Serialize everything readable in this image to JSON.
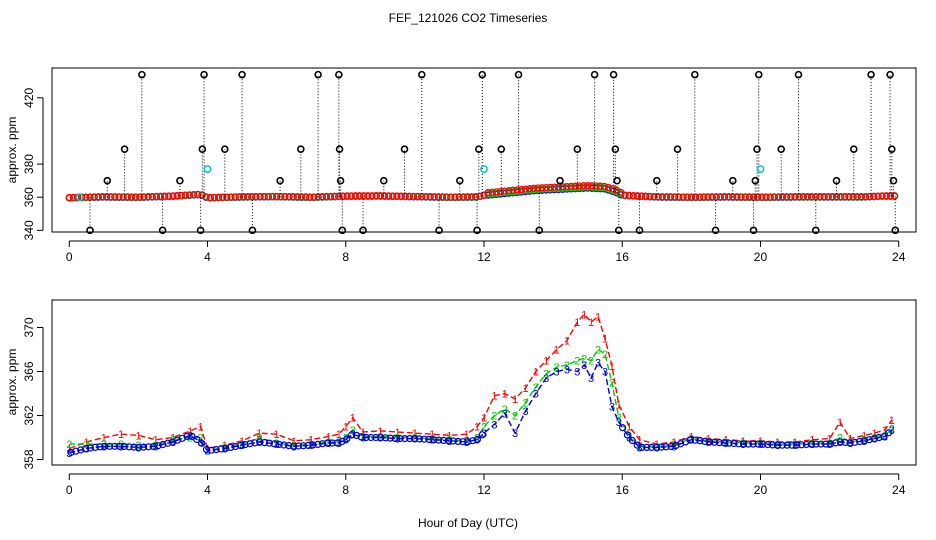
{
  "title": "FEF_121026  CO2 Timeseries",
  "xlabel": "Hour of Day (UTC)",
  "colors": {
    "axis": "#000000",
    "s1": "#ff0000",
    "s2": "#00cc00",
    "s3": "#0000cc",
    "black": "#000000",
    "cyan": "#00cccc"
  },
  "chart_data": [
    {
      "type": "scatter",
      "title": "FEF_121026  CO2 Timeseries",
      "xlabel": "",
      "ylabel": "approx. ppm",
      "xlim": [
        -0.5,
        24.5
      ],
      "ylim": [
        339,
        438
      ],
      "xticks": [
        0,
        4,
        8,
        12,
        16,
        20,
        24
      ],
      "xtick_labels": [
        "0",
        "4",
        "8",
        "12",
        "16",
        "20",
        "24"
      ],
      "yticks": [
        340,
        360,
        380,
        420
      ],
      "ytick_labels": [
        "340",
        "360",
        "380",
        "420"
      ],
      "baseline": [
        [
          0.0,
          359.5
        ],
        [
          1.0,
          360.0
        ],
        [
          2.0,
          359.8
        ],
        [
          3.0,
          360.5
        ],
        [
          3.8,
          361.5
        ],
        [
          4.0,
          359.5
        ],
        [
          5.0,
          360.0
        ],
        [
          6.0,
          360.2
        ],
        [
          7.0,
          359.8
        ],
        [
          8.0,
          360.5
        ],
        [
          9.0,
          360.6
        ],
        [
          10.0,
          360.2
        ],
        [
          11.0,
          359.8
        ],
        [
          11.8,
          360.0
        ],
        [
          12.0,
          361.0
        ],
        [
          12.5,
          362.0
        ],
        [
          13.0,
          363.0
        ],
        [
          13.5,
          364.0
        ],
        [
          14.0,
          364.5
        ],
        [
          14.5,
          365.0
        ],
        [
          15.0,
          365.5
        ],
        [
          15.5,
          365.0
        ],
        [
          15.8,
          363.0
        ],
        [
          16.0,
          361.0
        ],
        [
          17.0,
          360.0
        ],
        [
          18.0,
          359.8
        ],
        [
          19.0,
          360.0
        ],
        [
          20.0,
          359.8
        ],
        [
          21.0,
          360.0
        ],
        [
          22.0,
          360.0
        ],
        [
          23.0,
          360.0
        ],
        [
          23.5,
          360.5
        ],
        [
          24.0,
          360.6
        ]
      ],
      "series": [
        {
          "name": "3",
          "color": "#0000cc",
          "offset": 0
        },
        {
          "name": "2",
          "color": "#00cc00",
          "offset": 0.4
        },
        {
          "name": "1",
          "color": "#ff0000",
          "offset": 1.0
        }
      ],
      "spikes": [
        {
          "x": 0.6,
          "y": 340
        },
        {
          "x": 1.1,
          "y": 370
        },
        {
          "x": 1.6,
          "y": 389
        },
        {
          "x": 2.1,
          "y": 434
        },
        {
          "x": 2.7,
          "y": 340
        },
        {
          "x": 3.2,
          "y": 370
        },
        {
          "x": 3.8,
          "y": 340
        },
        {
          "x": 3.85,
          "y": 389
        },
        {
          "x": 3.9,
          "y": 434
        },
        {
          "x": 4.5,
          "y": 389
        },
        {
          "x": 5.0,
          "y": 434
        },
        {
          "x": 5.3,
          "y": 340
        },
        {
          "x": 6.1,
          "y": 370
        },
        {
          "x": 6.7,
          "y": 389
        },
        {
          "x": 7.2,
          "y": 434
        },
        {
          "x": 7.8,
          "y": 434
        },
        {
          "x": 7.82,
          "y": 389
        },
        {
          "x": 7.85,
          "y": 370
        },
        {
          "x": 7.9,
          "y": 340
        },
        {
          "x": 8.5,
          "y": 340
        },
        {
          "x": 9.1,
          "y": 370
        },
        {
          "x": 9.7,
          "y": 389
        },
        {
          "x": 10.2,
          "y": 434
        },
        {
          "x": 10.7,
          "y": 340
        },
        {
          "x": 11.3,
          "y": 370
        },
        {
          "x": 11.8,
          "y": 340
        },
        {
          "x": 11.85,
          "y": 389
        },
        {
          "x": 11.95,
          "y": 434
        },
        {
          "x": 12.5,
          "y": 389
        },
        {
          "x": 13.0,
          "y": 434
        },
        {
          "x": 13.6,
          "y": 340
        },
        {
          "x": 14.2,
          "y": 370
        },
        {
          "x": 14.7,
          "y": 389
        },
        {
          "x": 15.2,
          "y": 434
        },
        {
          "x": 15.75,
          "y": 434
        },
        {
          "x": 15.8,
          "y": 389
        },
        {
          "x": 15.85,
          "y": 370
        },
        {
          "x": 15.9,
          "y": 340
        },
        {
          "x": 16.5,
          "y": 340
        },
        {
          "x": 17.0,
          "y": 370
        },
        {
          "x": 17.6,
          "y": 389
        },
        {
          "x": 18.1,
          "y": 434
        },
        {
          "x": 18.7,
          "y": 340
        },
        {
          "x": 19.2,
          "y": 370
        },
        {
          "x": 19.8,
          "y": 340
        },
        {
          "x": 19.85,
          "y": 370
        },
        {
          "x": 19.9,
          "y": 389
        },
        {
          "x": 19.95,
          "y": 434
        },
        {
          "x": 20.6,
          "y": 389
        },
        {
          "x": 21.1,
          "y": 434
        },
        {
          "x": 21.6,
          "y": 340
        },
        {
          "x": 22.2,
          "y": 370
        },
        {
          "x": 22.7,
          "y": 389
        },
        {
          "x": 23.2,
          "y": 434
        },
        {
          "x": 23.75,
          "y": 434
        },
        {
          "x": 23.8,
          "y": 389
        },
        {
          "x": 23.85,
          "y": 370
        },
        {
          "x": 23.9,
          "y": 340
        }
      ],
      "cyan_points": [
        {
          "x": 0.3,
          "y": 360
        },
        {
          "x": 4.0,
          "y": 377
        },
        {
          "x": 12.0,
          "y": 377
        },
        {
          "x": 20.0,
          "y": 377
        }
      ]
    },
    {
      "type": "line",
      "title": "",
      "xlabel": "Hour of Day (UTC)",
      "ylabel": "approx. ppm",
      "xlim": [
        -0.5,
        24.5
      ],
      "ylim": [
        357.5,
        372.5
      ],
      "xticks": [
        0,
        4,
        8,
        12,
        16,
        20,
        24
      ],
      "xtick_labels": [
        "0",
        "4",
        "8",
        "12",
        "16",
        "20",
        "24"
      ],
      "yticks": [
        358,
        362,
        366,
        370
      ],
      "ytick_labels": [
        "358",
        "362",
        "366",
        "370"
      ],
      "series": [
        {
          "name": "1",
          "color": "#ff0000",
          "x": [
            0.0,
            0.5,
            1.0,
            1.5,
            2.0,
            2.5,
            3.0,
            3.5,
            3.8,
            4.0,
            4.5,
            5.0,
            5.5,
            6.0,
            6.5,
            7.0,
            7.5,
            7.8,
            8.0,
            8.2,
            8.5,
            9.0,
            9.5,
            10.0,
            10.5,
            11.0,
            11.5,
            11.8,
            12.0,
            12.3,
            12.6,
            12.9,
            13.2,
            13.5,
            13.8,
            14.1,
            14.4,
            14.7,
            14.9,
            15.1,
            15.3,
            15.5,
            15.7,
            15.9,
            16.2,
            16.5,
            17.0,
            17.5,
            18.0,
            18.5,
            19.0,
            19.5,
            20.0,
            20.5,
            21.0,
            21.5,
            22.0,
            22.3,
            22.6,
            23.0,
            23.3,
            23.6,
            23.8
          ],
          "values": [
            359.0,
            359.6,
            360.0,
            360.3,
            360.2,
            359.8,
            360.0,
            360.6,
            361.0,
            359.0,
            359.3,
            359.7,
            360.4,
            360.3,
            359.7,
            359.8,
            360.1,
            360.3,
            361.0,
            361.8,
            360.5,
            360.6,
            360.5,
            360.4,
            360.3,
            360.2,
            360.3,
            361.0,
            361.8,
            363.8,
            364.0,
            363.5,
            364.5,
            366.0,
            367.0,
            368.0,
            368.8,
            370.5,
            371.2,
            370.5,
            371.0,
            369.0,
            366.5,
            363.0,
            361.0,
            359.8,
            359.4,
            359.6,
            360.1,
            359.9,
            359.8,
            359.7,
            359.7,
            359.6,
            359.6,
            359.8,
            359.9,
            361.4,
            359.9,
            360.2,
            360.4,
            360.7,
            361.6
          ]
        },
        {
          "name": "2",
          "color": "#00cc00",
          "x": [
            0.0,
            0.5,
            1.0,
            1.5,
            2.0,
            2.5,
            3.0,
            3.5,
            3.8,
            4.0,
            4.5,
            5.0,
            5.5,
            6.0,
            6.5,
            7.0,
            7.5,
            7.8,
            8.0,
            8.2,
            8.5,
            9.0,
            9.5,
            10.0,
            10.5,
            11.0,
            11.5,
            11.8,
            12.0,
            12.3,
            12.6,
            12.9,
            13.2,
            13.5,
            13.8,
            14.1,
            14.4,
            14.7,
            14.9,
            15.1,
            15.3,
            15.5,
            15.7,
            15.9,
            16.2,
            16.5,
            17.0,
            17.5,
            18.0,
            18.5,
            19.0,
            19.5,
            20.0,
            20.5,
            21.0,
            21.5,
            22.0,
            22.3,
            22.6,
            23.0,
            23.3,
            23.6,
            23.8
          ],
          "values": [
            359.4,
            359.4,
            359.4,
            359.4,
            359.3,
            359.3,
            359.8,
            360.0,
            360.0,
            358.8,
            359.1,
            359.4,
            360.0,
            359.5,
            359.3,
            359.4,
            359.6,
            359.6,
            360.0,
            360.7,
            360.1,
            360.1,
            360.0,
            360.0,
            359.9,
            359.8,
            359.7,
            360.0,
            361.0,
            362.0,
            362.6,
            362.0,
            363.2,
            364.6,
            365.8,
            366.4,
            366.6,
            367.0,
            367.2,
            367.0,
            368.0,
            367.6,
            365.0,
            361.8,
            360.2,
            359.2,
            359.2,
            359.3,
            359.9,
            359.7,
            359.6,
            359.5,
            359.5,
            359.4,
            359.4,
            359.5,
            359.5,
            360.0,
            359.6,
            359.8,
            360.0,
            360.2,
            360.8
          ]
        },
        {
          "name": "3",
          "color": "#0000cc",
          "x": [
            0.0,
            0.5,
            1.0,
            1.5,
            2.0,
            2.5,
            3.0,
            3.5,
            3.8,
            4.0,
            4.5,
            5.0,
            5.5,
            6.0,
            6.5,
            7.0,
            7.5,
            7.8,
            8.0,
            8.2,
            8.5,
            9.0,
            9.5,
            10.0,
            10.5,
            11.0,
            11.5,
            11.8,
            12.0,
            12.3,
            12.6,
            12.9,
            13.2,
            13.5,
            13.8,
            14.1,
            14.4,
            14.7,
            14.9,
            15.1,
            15.3,
            15.5,
            15.7,
            15.9,
            16.2,
            16.5,
            17.0,
            17.5,
            18.0,
            18.5,
            19.0,
            19.5,
            20.0,
            20.5,
            21.0,
            21.5,
            22.0,
            22.3,
            22.6,
            23.0,
            23.3,
            23.6,
            23.8
          ],
          "values": [
            358.6,
            359.0,
            359.2,
            359.2,
            359.1,
            359.2,
            359.6,
            360.2,
            359.6,
            358.8,
            359.0,
            359.3,
            359.6,
            359.4,
            359.2,
            359.3,
            359.5,
            359.5,
            359.8,
            360.3,
            360.0,
            360.0,
            359.9,
            359.9,
            359.8,
            359.7,
            359.6,
            359.8,
            360.4,
            361.2,
            362.2,
            360.4,
            362.4,
            364.0,
            365.4,
            366.0,
            366.2,
            366.0,
            366.6,
            365.4,
            366.8,
            366.0,
            362.8,
            361.4,
            360.0,
            359.1,
            359.1,
            359.2,
            359.8,
            359.6,
            359.5,
            359.4,
            359.4,
            359.3,
            359.3,
            359.4,
            359.4,
            359.6,
            359.5,
            359.7,
            359.9,
            360.1,
            360.7
          ]
        }
      ]
    }
  ]
}
